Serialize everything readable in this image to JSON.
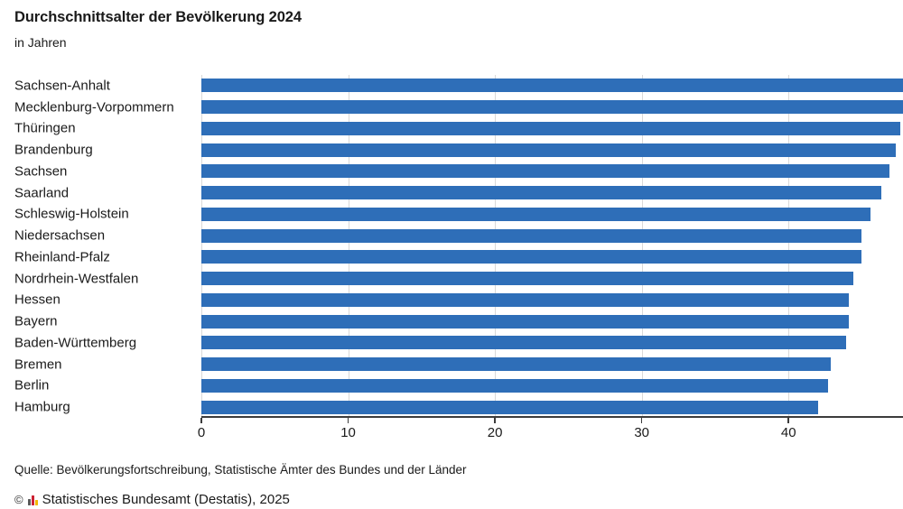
{
  "header": {
    "title": "Durchschnittsalter der Bevölkerung 2024",
    "subtitle": "in Jahren"
  },
  "chart_data": {
    "type": "bar",
    "orientation": "horizontal",
    "title": "Durchschnittsalter der Bevölkerung 2024",
    "subtitle": "in Jahren",
    "unit": "Jahre",
    "categories": [
      "Sachsen-Anhalt",
      "Mecklenburg-Vorpommern",
      "Thüringen",
      "Brandenburg",
      "Sachsen",
      "Saarland",
      "Schleswig-Holstein",
      "Niedersachsen",
      "Rheinland-Pfalz",
      "Nordrhein-Westfalen",
      "Hessen",
      "Bayern",
      "Baden-Württemberg",
      "Bremen",
      "Berlin",
      "Hamburg"
    ],
    "values": [
      48.0,
      47.8,
      47.6,
      47.3,
      46.9,
      46.3,
      45.6,
      45.0,
      45.0,
      44.4,
      44.1,
      44.1,
      43.9,
      42.9,
      42.7,
      42.0
    ],
    "x_ticks": [
      0,
      10,
      20,
      30,
      40
    ],
    "xlim": [
      0,
      47.8
    ],
    "grid": "vertical-light",
    "legend": "none",
    "bar_color": "#2e6eb8",
    "gridline_color": "#d9d9d9",
    "axis_color": "#3c3c3c"
  },
  "footer": {
    "source": "Quelle: Bevölkerungsfortschreibung, Statistische Ämter des Bundes und der Länder",
    "copyright_symbol": "©",
    "copyright": "Statistisches Bundesamt (Destatis), 2025"
  }
}
